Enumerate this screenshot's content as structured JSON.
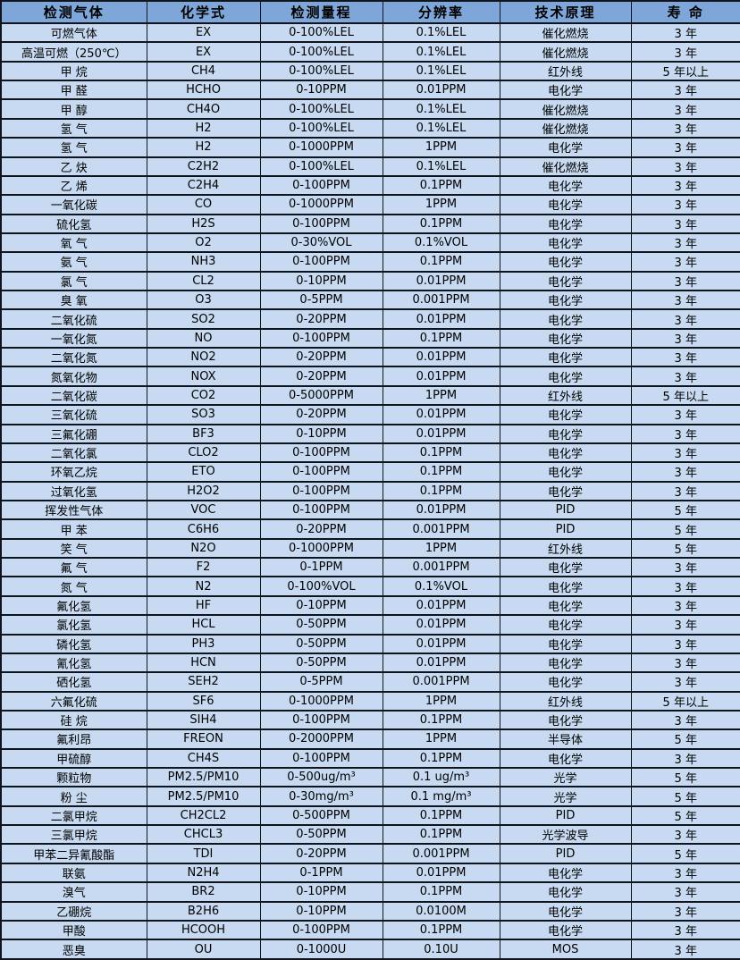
{
  "colors": {
    "header_bg": "#7ea6d8",
    "row_bg": "#c7daf1",
    "border": "#10151d",
    "text": "#000000"
  },
  "table": {
    "headers": [
      "检测气体",
      "化学式",
      "检测量程",
      "分辨率",
      "技术原理",
      "寿 命"
    ],
    "rows": [
      [
        "可燃气体",
        "EX",
        "0-100%LEL",
        "0.1%LEL",
        "催化燃烧",
        "3 年"
      ],
      [
        "高温可燃（250℃）",
        "EX",
        "0-100%LEL",
        "0.1%LEL",
        "催化燃烧",
        "3 年"
      ],
      [
        "甲 烷",
        "CH4",
        "0-100%LEL",
        "0.1%LEL",
        "红外线",
        "5 年以上"
      ],
      [
        "甲 醛",
        "HCHO",
        "0-10PPM",
        "0.01PPM",
        "电化学",
        "3 年"
      ],
      [
        "甲 醇",
        "CH4O",
        "0-100%LEL",
        "0.1%LEL",
        "催化燃烧",
        "3 年"
      ],
      [
        "氢 气",
        "H2",
        "0-100%LEL",
        "0.1%LEL",
        "催化燃烧",
        "3 年"
      ],
      [
        "氢 气",
        "H2",
        "0-1000PPM",
        "1PPM",
        "电化学",
        "3 年"
      ],
      [
        "乙 炔",
        "C2H2",
        "0-100%LEL",
        "0.1%LEL",
        "催化燃烧",
        "3 年"
      ],
      [
        "乙 烯",
        "C2H4",
        "0-100PPM",
        "0.1PPM",
        "电化学",
        "3 年"
      ],
      [
        "一氧化碳",
        "CO",
        "0-1000PPM",
        "1PPM",
        "电化学",
        "3 年"
      ],
      [
        "硫化氢",
        "H2S",
        "0-100PPM",
        "0.1PPM",
        "电化学",
        "3 年"
      ],
      [
        "氧 气",
        "O2",
        "0-30%VOL",
        "0.1%VOL",
        "电化学",
        "3 年"
      ],
      [
        "氨 气",
        "NH3",
        "0-100PPM",
        "0.1PPM",
        "电化学",
        "3 年"
      ],
      [
        "氯 气",
        "CL2",
        "0-10PPM",
        "0.01PPM",
        "电化学",
        "3 年"
      ],
      [
        "臭 氧",
        "O3",
        "0-5PPM",
        "0.001PPM",
        "电化学",
        "3 年"
      ],
      [
        "二氧化硫",
        "SO2",
        "0-20PPM",
        "0.01PPM",
        "电化学",
        "3 年"
      ],
      [
        "一氧化氮",
        "NO",
        "0-100PPM",
        "0.1PPM",
        "电化学",
        "3 年"
      ],
      [
        "二氧化氮",
        "NO2",
        "0-20PPM",
        "0.01PPM",
        "电化学",
        "3 年"
      ],
      [
        "氮氧化物",
        "NOX",
        "0-20PPM",
        "0.01PPM",
        "电化学",
        "3 年"
      ],
      [
        "二氧化碳",
        "CO2",
        "0-5000PPM",
        "1PPM",
        "红外线",
        "5 年以上"
      ],
      [
        "三氧化硫",
        "SO3",
        "0-20PPM",
        "0.01PPM",
        "电化学",
        "3 年"
      ],
      [
        "三氟化硼",
        "BF3",
        "0-10PPM",
        "0.01PPM",
        "电化学",
        "3 年"
      ],
      [
        "二氧化氯",
        "CLO2",
        "0-100PPM",
        "0.1PPM",
        "电化学",
        "3 年"
      ],
      [
        "环氧乙烷",
        "ETO",
        "0-100PPM",
        "0.1PPM",
        "电化学",
        "3 年"
      ],
      [
        "过氧化氢",
        "H2O2",
        "0-100PPM",
        "0.1PPM",
        "电化学",
        "3 年"
      ],
      [
        "挥发性气体",
        "VOC",
        "0-100PPM",
        "0.01PPM",
        "PID",
        "5 年"
      ],
      [
        "甲 苯",
        "C6H6",
        "0-20PPM",
        "0.001PPM",
        "PID",
        "5 年"
      ],
      [
        "笑 气",
        "N2O",
        "0-1000PPM",
        "1PPM",
        "红外线",
        "5 年"
      ],
      [
        "氟 气",
        "F2",
        "0-1PPM",
        "0.001PPM",
        "电化学",
        "3 年"
      ],
      [
        "氮 气",
        "N2",
        "0-100%VOL",
        "0.1%VOL",
        "电化学",
        "3 年"
      ],
      [
        "氟化氢",
        "HF",
        "0-10PPM",
        "0.01PPM",
        "电化学",
        "3 年"
      ],
      [
        "氯化氢",
        "HCL",
        "0-50PPM",
        "0.01PPM",
        "电化学",
        "3 年"
      ],
      [
        "磷化氢",
        "PH3",
        "0-50PPM",
        "0.01PPM",
        "电化学",
        "3 年"
      ],
      [
        "氰化氢",
        "HCN",
        "0-50PPM",
        "0.01PPM",
        "电化学",
        "3 年"
      ],
      [
        "硒化氢",
        "SEH2",
        "0-5PPM",
        "0.001PPM",
        "电化学",
        "3 年"
      ],
      [
        "六氟化硫",
        "SF6",
        "0-1000PPM",
        "1PPM",
        "红外线",
        "5 年以上"
      ],
      [
        "硅 烷",
        "SIH4",
        "0-100PPM",
        "0.1PPM",
        "电化学",
        "3 年"
      ],
      [
        "氟利昂",
        "FREON",
        "0-2000PPM",
        "1PPM",
        "半导体",
        "5 年"
      ],
      [
        "甲硫醇",
        "CH4S",
        "0-100PPM",
        "0.1PPM",
        "电化学",
        "3 年"
      ],
      [
        "颗粒物",
        "PM2.5/PM10",
        "0-500ug/m³",
        "0.1 ug/m³",
        "光学",
        "5 年"
      ],
      [
        "粉 尘",
        "PM2.5/PM10",
        "0-30mg/m³",
        "0.1 mg/m³",
        "光学",
        "5 年"
      ],
      [
        "二氯甲烷",
        "CH2CL2",
        "0-500PPM",
        "0.1PPM",
        "PID",
        "5 年"
      ],
      [
        "三氯甲烷",
        "CHCL3",
        "0-50PPM",
        "0.1PPM",
        "光学波导",
        "3 年"
      ],
      [
        "甲苯二异氰酸酯",
        "TDI",
        "0-20PPM",
        "0.001PPM",
        "PID",
        "5 年"
      ],
      [
        "联氨",
        "N2H4",
        "0-1PPM",
        "0.01PPM",
        "电化学",
        "3 年"
      ],
      [
        "溴气",
        "BR2",
        "0-10PPM",
        "0.1PPM",
        "电化学",
        "3 年"
      ],
      [
        "乙硼烷",
        "B2H6",
        "0-10PPM",
        "0.0100M",
        "电化学",
        "3 年"
      ],
      [
        "甲酸",
        "HCOOH",
        "0-100PPM",
        "0.1PPM",
        "电化学",
        "3 年"
      ],
      [
        "恶臭",
        "OU",
        "0-1000U",
        "0.10U",
        "MOS",
        "3 年"
      ]
    ]
  }
}
